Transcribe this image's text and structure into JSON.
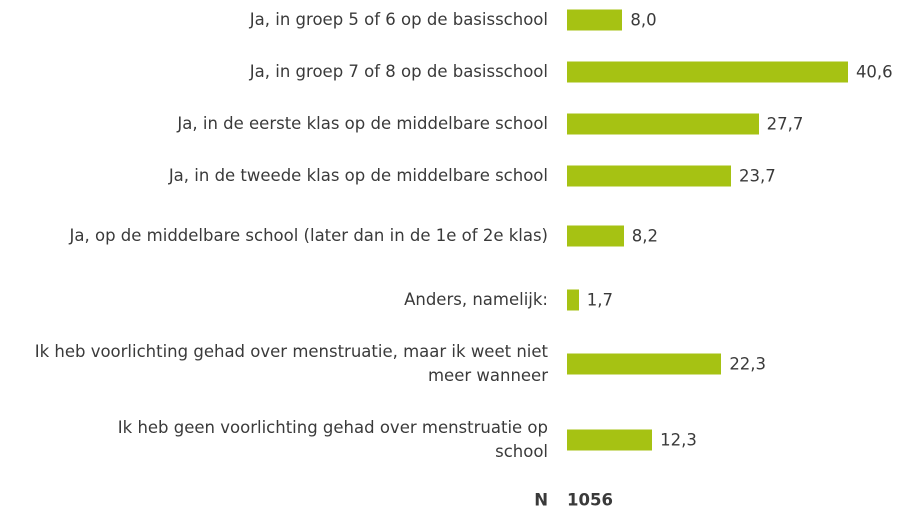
{
  "chart_data": {
    "type": "bar",
    "orientation": "horizontal",
    "categories": [
      "Ja, in groep 5 of 6 op de basisschool",
      "Ja, in groep 7 of 8 op de basisschool",
      "Ja, in de eerste klas op de middelbare school",
      "Ja, in de tweede klas op de middelbare school",
      "Ja, op de middelbare school (later dan in de 1e of 2e klas)",
      "Anders, namelijk:",
      "Ik heb voorlichting gehad over menstruatie, maar ik weet niet meer wanneer",
      "Ik heb geen voorlichting gehad over menstruatie op school"
    ],
    "values": [
      8.0,
      40.6,
      27.7,
      23.7,
      8.2,
      1.7,
      22.3,
      12.3
    ],
    "value_labels": [
      "8,0",
      "40,6",
      "27,7",
      "23,7",
      "8,2",
      "1,7",
      "22,3",
      "12,3"
    ],
    "color": "#a6c213",
    "sample_size": {
      "label": "N",
      "value": 1056
    }
  }
}
